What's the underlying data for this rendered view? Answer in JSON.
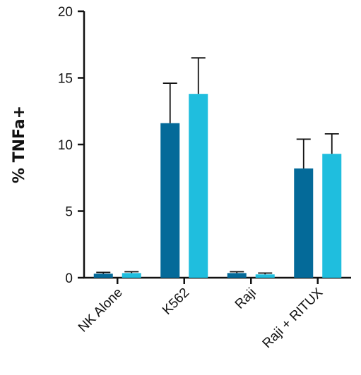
{
  "chart_data": {
    "type": "bar",
    "title": "",
    "xlabel": "",
    "ylabel": "% TNFa+",
    "ylim": [
      0,
      20
    ],
    "yticks": [
      "0",
      "5",
      "10",
      "15",
      "20"
    ],
    "ytick_values": [
      0,
      5,
      10,
      15,
      20
    ],
    "grid": false,
    "legend": "none",
    "categories": [
      "NK Alone",
      "K562",
      "Raji",
      "Raji + RITUX"
    ],
    "series": [
      {
        "color": "#046a99",
        "values": [
          0.3,
          11.6,
          0.35,
          8.2
        ],
        "errors": [
          0.1,
          3.0,
          0.1,
          2.2
        ]
      },
      {
        "color": "#1fbede",
        "values": [
          0.35,
          13.8,
          0.25,
          9.3
        ],
        "errors": [
          0.1,
          2.7,
          0.1,
          1.5
        ]
      }
    ]
  }
}
